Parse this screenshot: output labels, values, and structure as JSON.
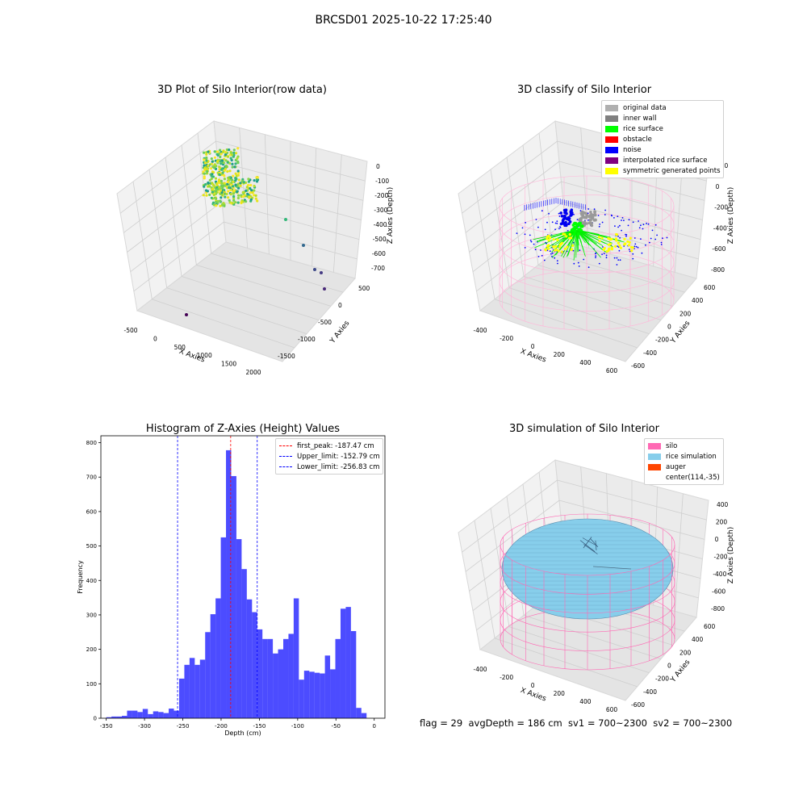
{
  "figure": {
    "suptitle": "BRCSD01 2025-10-22 17:25:40",
    "footer": "flag = 29  avgDepth = 186 cm  sv1 = 700~2300  sv2 = 700~2300"
  },
  "panels": {
    "raw": {
      "title": "3D Plot of Silo Interior(row data)",
      "xlabel": "X Axies",
      "ylabel": "Y Axies",
      "zlabel": "Z Axies (Depth)",
      "xticks": [
        "-500",
        "0",
        "500",
        "1000",
        "1500",
        "2000"
      ],
      "yticks": [
        "500",
        "0",
        "-500",
        "-1000",
        "-1500"
      ],
      "zticks": [
        "0",
        "-100",
        "-200",
        "-300",
        "-400",
        "-500",
        "-600",
        "-700"
      ]
    },
    "classify": {
      "title": "3D classify of Silo Interior",
      "xlabel": "X Axies",
      "ylabel": "Y Axies",
      "zlabel": "Z Axies (Depth)",
      "xticks": [
        "-400",
        "-200",
        "0",
        "200",
        "400",
        "600"
      ],
      "yticks": [
        "600",
        "400",
        "200",
        "0",
        "-200",
        "-400",
        "-600"
      ],
      "zticks": [
        "200",
        "0",
        "-200",
        "-400",
        "-600",
        "-800"
      ],
      "legend": [
        {
          "label": "original data",
          "color": "#b0b0b0"
        },
        {
          "label": "inner wall",
          "color": "#808080"
        },
        {
          "label": "rice surface",
          "color": "#00ff00"
        },
        {
          "label": "obstacle",
          "color": "#ff0000"
        },
        {
          "label": "noise",
          "color": "#0000ff"
        },
        {
          "label": "interpolated rice surface",
          "color": "#800080"
        },
        {
          "label": "symmetric generated points",
          "color": "#ffff00"
        }
      ]
    },
    "simulation": {
      "title": "3D simulation of Silo Interior",
      "xlabel": "X Axies",
      "ylabel": "Y Axies",
      "zlabel": "Z Axies (Depth)",
      "xticks": [
        "-400",
        "-200",
        "0",
        "200",
        "400",
        "600"
      ],
      "yticks": [
        "600",
        "400",
        "200",
        "0",
        "-200",
        "-400",
        "-600"
      ],
      "zticks": [
        "400",
        "200",
        "0",
        "-200",
        "-400",
        "-600",
        "-800"
      ],
      "legend": [
        {
          "label": "silo",
          "color": "#ff69b4"
        },
        {
          "label": "rice simulation",
          "color": "#87ceeb"
        },
        {
          "label": "auger",
          "color": "#ff4500"
        },
        {
          "label": "center(114,-35)",
          "color": ""
        }
      ]
    }
  },
  "chart_data": {
    "type": "bar",
    "title": "Histogram of Z-Axies (Height) Values",
    "xlabel": "Depth (cm)",
    "ylabel": "Frequency",
    "xlim": [
      -357,
      14
    ],
    "ylim": [
      0,
      820
    ],
    "xticks": [
      -350,
      -300,
      -250,
      -200,
      -150,
      -100,
      -50,
      0
    ],
    "yticks": [
      0,
      100,
      200,
      300,
      400,
      500,
      600,
      700,
      800
    ],
    "bar_color": "#0000ff",
    "bins": {
      "start": -350,
      "width": 6.8,
      "counts": [
        3,
        5,
        5,
        7,
        22,
        22,
        18,
        27,
        12,
        20,
        18,
        15,
        28,
        22,
        115,
        155,
        175,
        155,
        170,
        250,
        302,
        348,
        525,
        778,
        703,
        520,
        433,
        345,
        308,
        258,
        230,
        230,
        188,
        200,
        230,
        245,
        348,
        112,
        138,
        135,
        132,
        130,
        182,
        142,
        230,
        318,
        323,
        253,
        30,
        15
      ]
    },
    "vlines": [
      {
        "label": "first_peak: -187.47 cm",
        "x": -187.47,
        "color": "#ff0000"
      },
      {
        "label": "Upper_limit: -152.79 cm",
        "x": -152.79,
        "color": "#0000ff"
      },
      {
        "label": "Lower_limit: -256.83 cm",
        "x": -256.83,
        "color": "#0000ff"
      }
    ]
  }
}
